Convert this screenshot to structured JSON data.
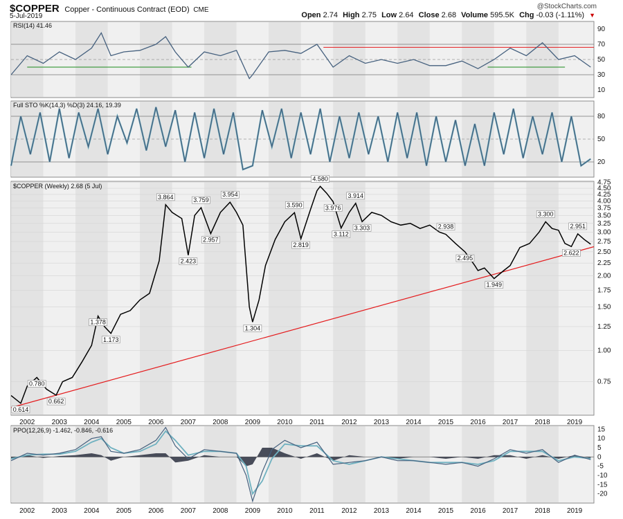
{
  "header": {
    "symbol": "$COPPER",
    "name": "Copper - Continuous Contract (EOD)",
    "exchange": "CME",
    "date": "5-Jul-2019",
    "credit": "@StockCharts.com",
    "open_label": "Open",
    "open": "2.74",
    "high_label": "High",
    "high": "2.75",
    "low_label": "Low",
    "low": "2.64",
    "close_label": "Close",
    "close": "2.68",
    "volume_label": "Volume",
    "volume": "595.5K",
    "chg_label": "Chg",
    "chg": "-0.03 (-1.11%)"
  },
  "colors": {
    "price": "#000000",
    "trend": "#e41a1c",
    "indicator": "#45607e",
    "signal": "#6fb1c0",
    "panel_bg": "#f0f0f0",
    "band": "#e3e3e3"
  },
  "chart_data": [
    {
      "type": "line",
      "title": "RSI(14) 41.46",
      "ylim": [
        0,
        100
      ],
      "yticks": [
        10,
        30,
        50,
        70,
        90
      ],
      "reference_lines": [
        30,
        70
      ],
      "value": 41.46,
      "x": [
        2001.5,
        2002,
        2002.5,
        2003,
        2003.5,
        2004,
        2004.3,
        2004.6,
        2005,
        2005.5,
        2006,
        2006.3,
        2006.6,
        2007,
        2007.5,
        2008,
        2008.5,
        2008.9,
        2009,
        2009.5,
        2010,
        2010.5,
        2011,
        2011.5,
        2012,
        2012.5,
        2013,
        2013.5,
        2014,
        2014.5,
        2015,
        2015.5,
        2016,
        2016.5,
        2017,
        2017.5,
        2018,
        2018.5,
        2019,
        2019.5
      ],
      "y": [
        30,
        55,
        45,
        60,
        50,
        65,
        85,
        55,
        60,
        62,
        70,
        80,
        60,
        40,
        60,
        55,
        62,
        25,
        30,
        60,
        62,
        58,
        70,
        40,
        55,
        45,
        50,
        45,
        50,
        42,
        42,
        48,
        38,
        50,
        65,
        55,
        72,
        50,
        55,
        40
      ]
    },
    {
      "type": "line",
      "title": "Full STO %K(14,3) %D(3) 24.16, 19.39",
      "ylim": [
        0,
        100
      ],
      "yticks": [
        20,
        50,
        80
      ],
      "reference_lines": [
        20,
        80
      ],
      "series": [
        {
          "name": "%K(14,3)",
          "value": 24.16
        },
        {
          "name": "%D(3)",
          "value": 19.39
        }
      ],
      "x": [
        2001.5,
        2001.8,
        2002.1,
        2002.4,
        2002.7,
        2003,
        2003.3,
        2003.6,
        2003.9,
        2004.2,
        2004.5,
        2004.8,
        2005.1,
        2005.4,
        2005.7,
        2006,
        2006.3,
        2006.6,
        2006.9,
        2007.2,
        2007.5,
        2007.8,
        2008.1,
        2008.4,
        2008.7,
        2009,
        2009.3,
        2009.6,
        2009.9,
        2010.2,
        2010.5,
        2010.8,
        2011.1,
        2011.4,
        2011.7,
        2012,
        2012.3,
        2012.6,
        2012.9,
        2013.2,
        2013.5,
        2013.8,
        2014.1,
        2014.4,
        2014.7,
        2015,
        2015.3,
        2015.6,
        2015.9,
        2016.2,
        2016.5,
        2016.8,
        2017.1,
        2017.4,
        2017.7,
        2018,
        2018.3,
        2018.6,
        2018.9,
        2019.2,
        2019.5
      ],
      "y": [
        15,
        80,
        30,
        85,
        20,
        90,
        25,
        85,
        40,
        90,
        30,
        80,
        45,
        90,
        35,
        92,
        40,
        88,
        20,
        85,
        25,
        90,
        30,
        85,
        10,
        15,
        88,
        40,
        90,
        25,
        85,
        30,
        90,
        20,
        80,
        25,
        85,
        30,
        80,
        20,
        85,
        25,
        85,
        15,
        80,
        20,
        75,
        15,
        70,
        15,
        85,
        30,
        90,
        25,
        80,
        30,
        85,
        20,
        80,
        15,
        24
      ]
    },
    {
      "type": "line",
      "title": "$COPPER (Weekly) 2.68 (5 Jul)",
      "yscale": "log",
      "ylim": [
        0.55,
        4.8
      ],
      "yticks": [
        0.75,
        1.0,
        1.25,
        1.5,
        1.75,
        2.0,
        2.25,
        2.5,
        2.75,
        3.0,
        3.25,
        3.5,
        3.75,
        4.0,
        4.25,
        4.5,
        4.75
      ],
      "x_ticks": [
        "2002",
        "2003",
        "2004",
        "2005",
        "2006",
        "2007",
        "2008",
        "2009",
        "2010",
        "2011",
        "2012",
        "2013",
        "2014",
        "2015",
        "2016",
        "2017",
        "2018",
        "2019"
      ],
      "x": [
        2001.5,
        2001.8,
        2002.0,
        2002.3,
        2002.6,
        2002.9,
        2003.1,
        2003.4,
        2003.7,
        2004.0,
        2004.2,
        2004.4,
        2004.6,
        2004.9,
        2005.2,
        2005.5,
        2005.8,
        2006.1,
        2006.3,
        2006.5,
        2006.8,
        2007.0,
        2007.2,
        2007.4,
        2007.7,
        2008.0,
        2008.3,
        2008.5,
        2008.7,
        2008.9,
        2009.0,
        2009.2,
        2009.4,
        2009.7,
        2010.0,
        2010.3,
        2010.5,
        2010.8,
        2011.0,
        2011.1,
        2011.3,
        2011.5,
        2011.75,
        2012.0,
        2012.2,
        2012.4,
        2012.7,
        2013.0,
        2013.3,
        2013.6,
        2013.9,
        2014.2,
        2014.5,
        2014.8,
        2015.0,
        2015.3,
        2015.6,
        2015.9,
        2016.0,
        2016.2,
        2016.5,
        2016.8,
        2017.0,
        2017.3,
        2017.6,
        2017.9,
        2018.1,
        2018.3,
        2018.5,
        2018.7,
        2018.9,
        2019.1,
        2019.3,
        2019.5
      ],
      "y": [
        0.66,
        0.614,
        0.72,
        0.78,
        0.7,
        0.662,
        0.75,
        0.78,
        0.9,
        1.05,
        1.378,
        1.25,
        1.173,
        1.4,
        1.45,
        1.6,
        1.7,
        2.3,
        3.864,
        3.6,
        3.4,
        2.423,
        3.5,
        3.759,
        2.957,
        3.6,
        3.954,
        3.6,
        3.2,
        1.5,
        1.304,
        1.6,
        2.2,
        2.8,
        3.3,
        3.59,
        2.819,
        3.7,
        4.4,
        4.58,
        4.3,
        3.976,
        3.112,
        3.6,
        3.914,
        3.303,
        3.6,
        3.5,
        3.3,
        3.2,
        3.25,
        3.1,
        3.2,
        3.0,
        2.938,
        2.7,
        2.495,
        2.2,
        2.1,
        2.15,
        1.949,
        2.1,
        2.2,
        2.6,
        2.7,
        3.0,
        3.3,
        3.1,
        3.05,
        2.7,
        2.622,
        2.951,
        2.8,
        2.68
      ],
      "annotations": [
        {
          "x": 2001.8,
          "y": 0.614,
          "text": "0.614"
        },
        {
          "x": 2002.3,
          "y": 0.78,
          "text": "0.780"
        },
        {
          "x": 2002.9,
          "y": 0.662,
          "text": "0.662"
        },
        {
          "x": 2004.2,
          "y": 1.378,
          "text": "1.378"
        },
        {
          "x": 2004.6,
          "y": 1.173,
          "text": "1.173"
        },
        {
          "x": 2006.3,
          "y": 3.864,
          "text": "3.864"
        },
        {
          "x": 2007.0,
          "y": 2.423,
          "text": "2.423"
        },
        {
          "x": 2007.4,
          "y": 3.759,
          "text": "3.759"
        },
        {
          "x": 2007.7,
          "y": 2.957,
          "text": "2.957"
        },
        {
          "x": 2008.3,
          "y": 3.954,
          "text": "3.954"
        },
        {
          "x": 2009.0,
          "y": 1.304,
          "text": "1.304"
        },
        {
          "x": 2010.3,
          "y": 3.59,
          "text": "3.590"
        },
        {
          "x": 2010.5,
          "y": 2.819,
          "text": "2.819"
        },
        {
          "x": 2011.1,
          "y": 4.58,
          "text": "4.580"
        },
        {
          "x": 2011.5,
          "y": 3.976,
          "text": "3.976"
        },
        {
          "x": 2011.75,
          "y": 3.112,
          "text": "3.112"
        },
        {
          "x": 2012.2,
          "y": 3.914,
          "text": "3.914"
        },
        {
          "x": 2012.4,
          "y": 3.303,
          "text": "3.303"
        },
        {
          "x": 2015.0,
          "y": 2.938,
          "text": "2.938"
        },
        {
          "x": 2015.6,
          "y": 2.495,
          "text": "2.495"
        },
        {
          "x": 2016.5,
          "y": 1.949,
          "text": "1.949"
        },
        {
          "x": 2018.1,
          "y": 3.3,
          "text": "3.300"
        },
        {
          "x": 2018.9,
          "y": 2.622,
          "text": "2.622"
        },
        {
          "x": 2019.1,
          "y": 2.951,
          "text": "2.951"
        }
      ],
      "trendline": {
        "x": [
          2001.5,
          2019.6
        ],
        "y": [
          0.59,
          2.62
        ]
      }
    },
    {
      "type": "line",
      "title": "PPO(12,26,9) -1.462, -0.846, -0.616",
      "ylim": [
        -25,
        17
      ],
      "yticks": [
        15,
        10,
        5,
        0,
        -5,
        -10,
        -15,
        -20
      ],
      "x_ticks": [
        "2002",
        "2003",
        "2004",
        "2005",
        "2006",
        "2007",
        "2008",
        "2009",
        "2010",
        "2011",
        "2012",
        "2013",
        "2014",
        "2015",
        "2016",
        "2017",
        "2018",
        "2019"
      ],
      "series": [
        {
          "name": "PPO",
          "value": -1.462
        },
        {
          "name": "Signal",
          "value": -0.846
        },
        {
          "name": "Histogram",
          "value": -0.616
        }
      ],
      "x": [
        2001.5,
        2002,
        2002.5,
        2003,
        2003.5,
        2004,
        2004.3,
        2004.6,
        2005,
        2005.5,
        2006,
        2006.3,
        2006.6,
        2007,
        2007.5,
        2008,
        2008.5,
        2008.8,
        2009,
        2009.3,
        2009.6,
        2010,
        2010.5,
        2011,
        2011.5,
        2012,
        2012.5,
        2013,
        2013.5,
        2014,
        2014.5,
        2015,
        2015.5,
        2016,
        2016.5,
        2017,
        2017.5,
        2018,
        2018.5,
        2019,
        2019.5
      ],
      "ppo": [
        -2,
        2,
        1,
        2,
        4,
        10,
        11,
        3,
        2,
        4,
        9,
        16,
        6,
        -1,
        4,
        3,
        2,
        -10,
        -24,
        -8,
        4,
        9,
        5,
        8,
        -4,
        -3,
        -2,
        0,
        -2,
        -2,
        -3,
        -4,
        -3,
        -5,
        -1,
        4,
        2,
        4,
        -3,
        1,
        -1.462
      ],
      "signal": [
        -1,
        1,
        1.5,
        1.5,
        3,
        8,
        10,
        5,
        2,
        3,
        7,
        14,
        9,
        1,
        3,
        3,
        2,
        -5,
        -20,
        -13,
        -1,
        7,
        6,
        6,
        -2,
        -4,
        -2,
        0,
        -1,
        -2,
        -3,
        -3,
        -3,
        -4,
        -2,
        3,
        3,
        3,
        -2,
        0,
        -0.846
      ]
    }
  ]
}
